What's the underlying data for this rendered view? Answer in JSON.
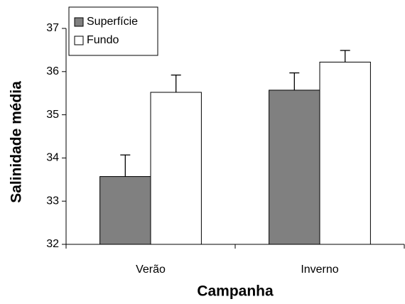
{
  "chart_data": {
    "type": "bar",
    "xlabel": "Campanha",
    "ylabel": "Salinidade média",
    "categories": [
      "Verão",
      "Inverno"
    ],
    "series": [
      {
        "name": "Superfície",
        "color": "#808080",
        "values": [
          33.57,
          35.57
        ],
        "errors": [
          0.5,
          0.4
        ]
      },
      {
        "name": "Fundo",
        "color": "#ffffff",
        "values": [
          35.52,
          36.22
        ],
        "errors": [
          0.4,
          0.27
        ]
      }
    ],
    "ylim": [
      32,
      37
    ],
    "yticks": [
      32,
      33,
      34,
      35,
      36,
      37
    ],
    "grid": false,
    "legend": "top-left"
  }
}
